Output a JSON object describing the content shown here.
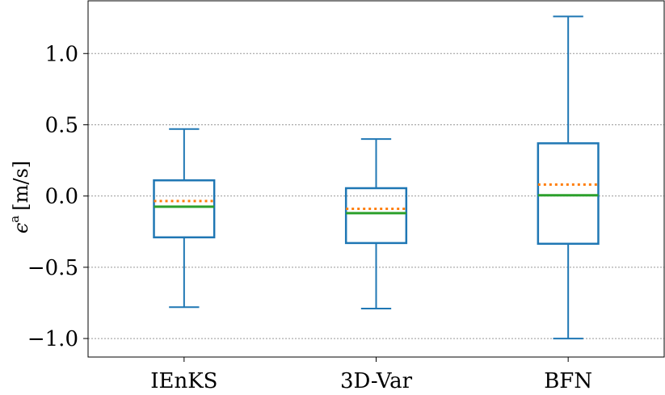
{
  "chart_data": {
    "type": "box",
    "title": "",
    "xlabel": "",
    "ylabel": "ϵ",
    "ylabel_superscript": "a",
    "ylabel_unit": "[m/s]",
    "ylim": [
      -1.13,
      1.37
    ],
    "yticks": [
      1.0,
      0.5,
      0.0,
      -0.5,
      -1.0
    ],
    "ytick_labels": [
      "1.0",
      "0.5",
      "0.0",
      "−0.5",
      "−1.0"
    ],
    "grid": "horizontal-dotted",
    "categories": [
      "IEnKS",
      "3D-Var",
      "BFN"
    ],
    "boxes": [
      {
        "category": "IEnKS",
        "whisker_low": -0.78,
        "q1": -0.29,
        "median": -0.075,
        "mean": -0.035,
        "q3": 0.11,
        "whisker_high": 0.47
      },
      {
        "category": "3D-Var",
        "whisker_low": -0.79,
        "q1": -0.33,
        "median": -0.12,
        "mean": -0.09,
        "q3": 0.055,
        "whisker_high": 0.4
      },
      {
        "category": "BFN",
        "whisker_low": -1.0,
        "q1": -0.335,
        "median": 0.005,
        "mean": 0.08,
        "q3": 0.37,
        "whisker_high": 1.26
      }
    ],
    "colors": {
      "box": "#1f77b4",
      "median": "#2ca02c",
      "mean": "#ff7f0e",
      "grid": "#999999",
      "axes": "#000000"
    }
  }
}
